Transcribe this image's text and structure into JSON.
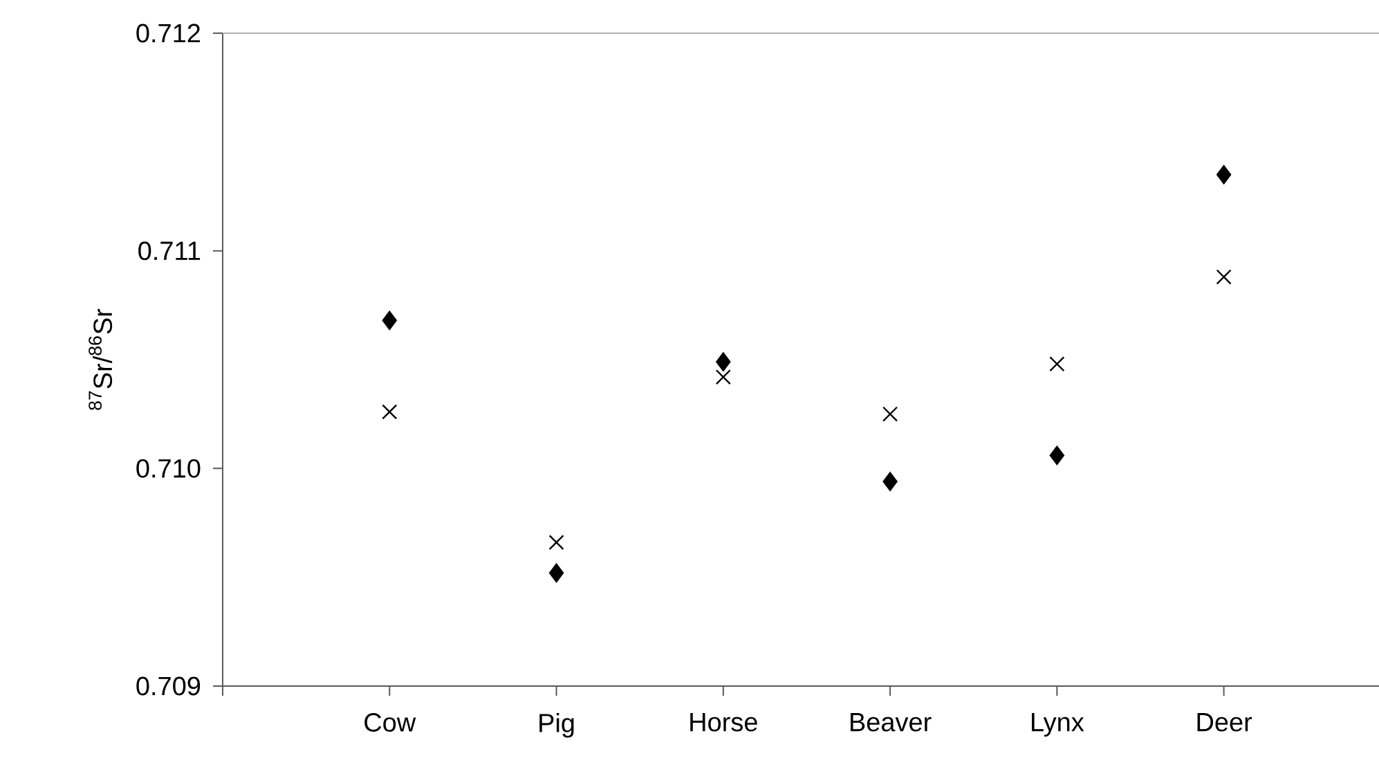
{
  "chart_data": {
    "type": "scatter",
    "ylabel": "$^{87}$Sr/$^{86}$Sr",
    "categories": [
      "Cow",
      "Pig",
      "Horse",
      "Beaver",
      "Lynx",
      "Deer"
    ],
    "series": [
      {
        "color": "#000000",
        "marker": "diamond",
        "values": [
          0.71068,
          0.70952,
          0.71049,
          0.70994,
          0.71006,
          0.71135
        ]
      },
      {
        "color": "#000000",
        "marker": "cross",
        "values": [
          0.71026,
          0.70966,
          0.71042,
          0.71025,
          0.71048,
          0.71088
        ]
      }
    ],
    "ylim": [
      0.709,
      0.712
    ],
    "yticks": [
      {
        "value": 0.709,
        "label": "0.709"
      },
      {
        "value": 0.71,
        "label": "0.710"
      },
      {
        "value": 0.711,
        "label": "0.711"
      },
      {
        "value": 0.712,
        "label": "0.712"
      }
    ]
  }
}
